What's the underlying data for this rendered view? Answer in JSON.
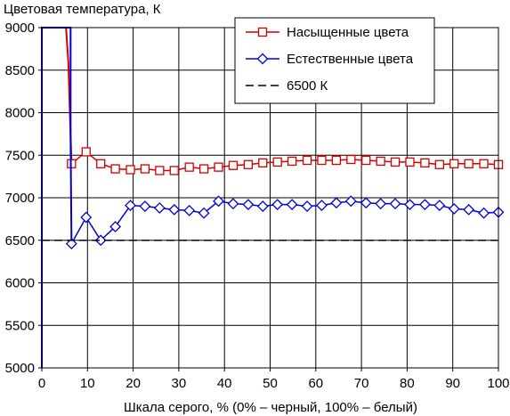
{
  "chart_data": {
    "type": "line",
    "title": "Цветовая температура, К",
    "xlabel": "Шкала серого, % (0% – черный, 100% – белый)",
    "ylabel": "",
    "xlim": [
      0,
      100
    ],
    "ylim": [
      5000,
      9000
    ],
    "x_ticks": [
      "0",
      "10",
      "20",
      "30",
      "40",
      "50",
      "60",
      "70",
      "80",
      "90",
      "100"
    ],
    "y_ticks": [
      "5000",
      "5500",
      "6000",
      "6500",
      "7000",
      "7500",
      "8000",
      "8500",
      "9000"
    ],
    "grid": true,
    "legend_position": "top-right",
    "series": [
      {
        "name": "Насыщенные цвета",
        "color": "#d40000",
        "marker": "square",
        "x": [
          6.5,
          9.7,
          12.9,
          16.1,
          19.4,
          22.6,
          25.8,
          29.0,
          32.3,
          35.5,
          38.7,
          41.9,
          45.2,
          48.4,
          51.6,
          54.8,
          58.1,
          61.3,
          64.5,
          67.7,
          71.0,
          74.2,
          77.4,
          80.6,
          83.9,
          87.1,
          90.3,
          93.5,
          96.8,
          100
        ],
        "y": [
          7400,
          7540,
          7400,
          7340,
          7330,
          7340,
          7320,
          7320,
          7360,
          7340,
          7360,
          7380,
          7390,
          7410,
          7420,
          7430,
          7440,
          7440,
          7440,
          7450,
          7440,
          7430,
          7420,
          7420,
          7410,
          7390,
          7400,
          7400,
          7400,
          7390
        ],
        "lead_in": {
          "x": [
            5.3,
            5.8,
            6.2,
            6.5
          ],
          "y": [
            9000,
            8600,
            7900,
            7400
          ]
        }
      },
      {
        "name": "Естественные цвета",
        "color": "#0000d4",
        "marker": "diamond",
        "x": [
          6.5,
          9.7,
          12.9,
          16.1,
          19.4,
          22.6,
          25.8,
          29.0,
          32.3,
          35.5,
          38.7,
          41.9,
          45.2,
          48.4,
          51.6,
          54.8,
          58.1,
          61.3,
          64.5,
          67.7,
          71.0,
          74.2,
          77.4,
          80.6,
          83.9,
          87.1,
          90.3,
          93.5,
          96.8,
          100
        ],
        "y": [
          6460,
          6770,
          6500,
          6660,
          6910,
          6900,
          6880,
          6860,
          6850,
          6820,
          6960,
          6930,
          6920,
          6900,
          6920,
          6920,
          6900,
          6910,
          6940,
          6960,
          6940,
          6930,
          6930,
          6920,
          6920,
          6910,
          6870,
          6860,
          6820,
          6830
        ],
        "lead_in": {
          "x": [
            0,
            0,
            6.3,
            6.3,
            6.5
          ],
          "y": [
            5000,
            9000,
            9000,
            7700,
            6460
          ]
        }
      },
      {
        "name": "6500 К",
        "color": "#000000",
        "style": "dashed",
        "x": [
          0,
          100
        ],
        "y": [
          6500,
          6500
        ]
      }
    ]
  }
}
